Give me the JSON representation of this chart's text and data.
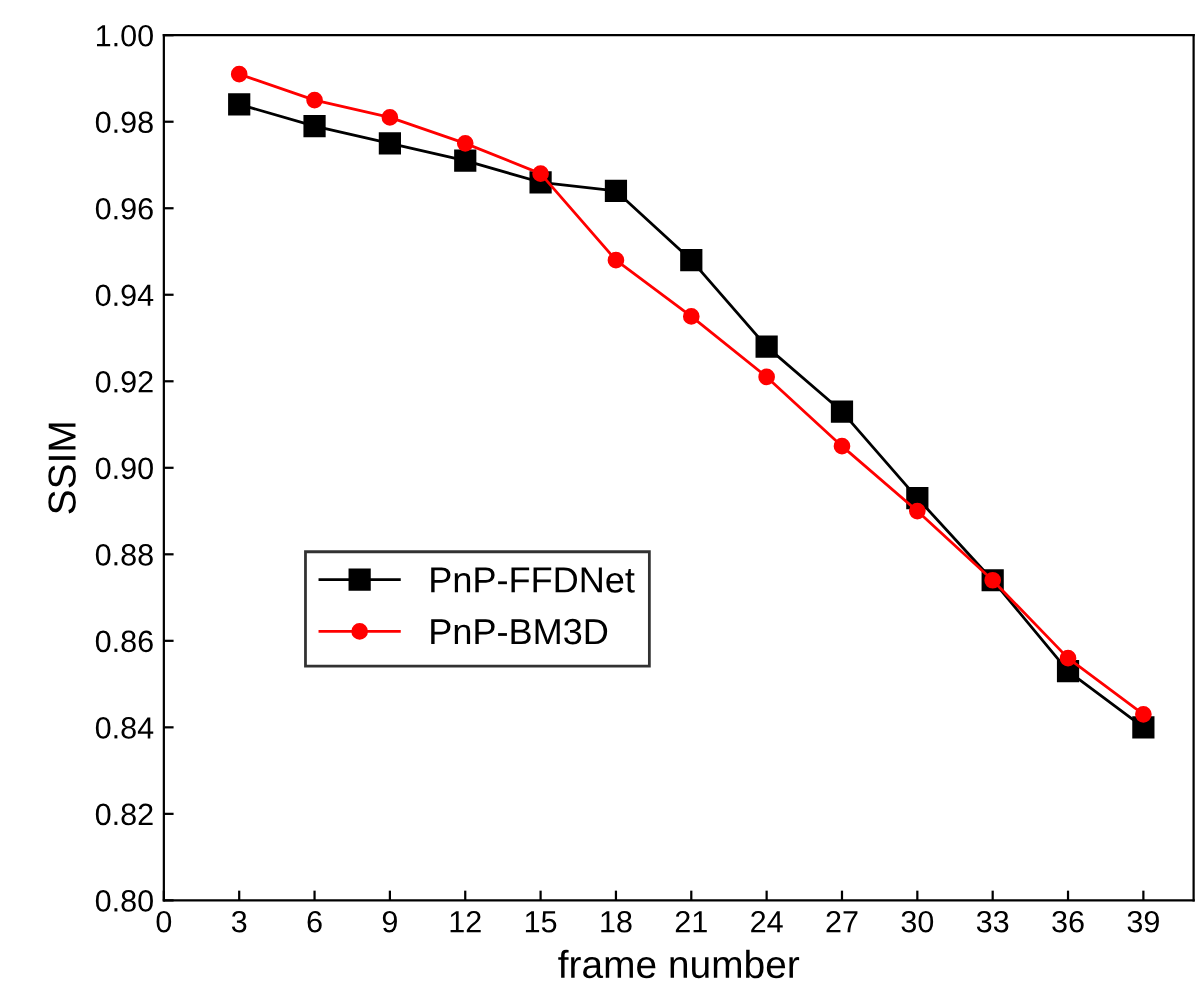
{
  "chart_data": {
    "type": "line",
    "xlabel": "frame number",
    "ylabel": "SSIM",
    "x": [
      3,
      6,
      9,
      12,
      15,
      18,
      21,
      24,
      27,
      30,
      33,
      36,
      39
    ],
    "series": [
      {
        "name": "PnP-FFDNet",
        "color": "#000000",
        "marker": "square",
        "values": [
          0.984,
          0.979,
          0.975,
          0.971,
          0.966,
          0.964,
          0.948,
          0.928,
          0.913,
          0.893,
          0.874,
          0.853,
          0.84
        ]
      },
      {
        "name": "PnP-BM3D",
        "color": "#ff0000",
        "marker": "circle",
        "values": [
          0.991,
          0.985,
          0.981,
          0.975,
          0.968,
          0.948,
          0.935,
          0.921,
          0.905,
          0.89,
          0.874,
          0.856,
          0.843
        ]
      }
    ],
    "xlim": [
      0,
      41
    ],
    "xticks": [
      0,
      3,
      6,
      9,
      12,
      15,
      18,
      21,
      24,
      27,
      30,
      33,
      36,
      39
    ],
    "ylim": [
      0.8,
      1.0
    ],
    "yticks": [
      {
        "value": 0.8,
        "label": "0.80"
      },
      {
        "value": 0.82,
        "label": "0.82"
      },
      {
        "value": 0.84,
        "label": "0.84"
      },
      {
        "value": 0.86,
        "label": "0.86"
      },
      {
        "value": 0.88,
        "label": "0.88"
      },
      {
        "value": 0.9,
        "label": "0.90"
      },
      {
        "value": 0.92,
        "label": "0.92"
      },
      {
        "value": 0.94,
        "label": "0.94"
      },
      {
        "value": 0.96,
        "label": "0.96"
      },
      {
        "value": 0.98,
        "label": "0.98"
      },
      {
        "value": 1.0,
        "label": "1.00"
      }
    ],
    "grid": false,
    "legend": "lower left",
    "line_style": "solid"
  }
}
